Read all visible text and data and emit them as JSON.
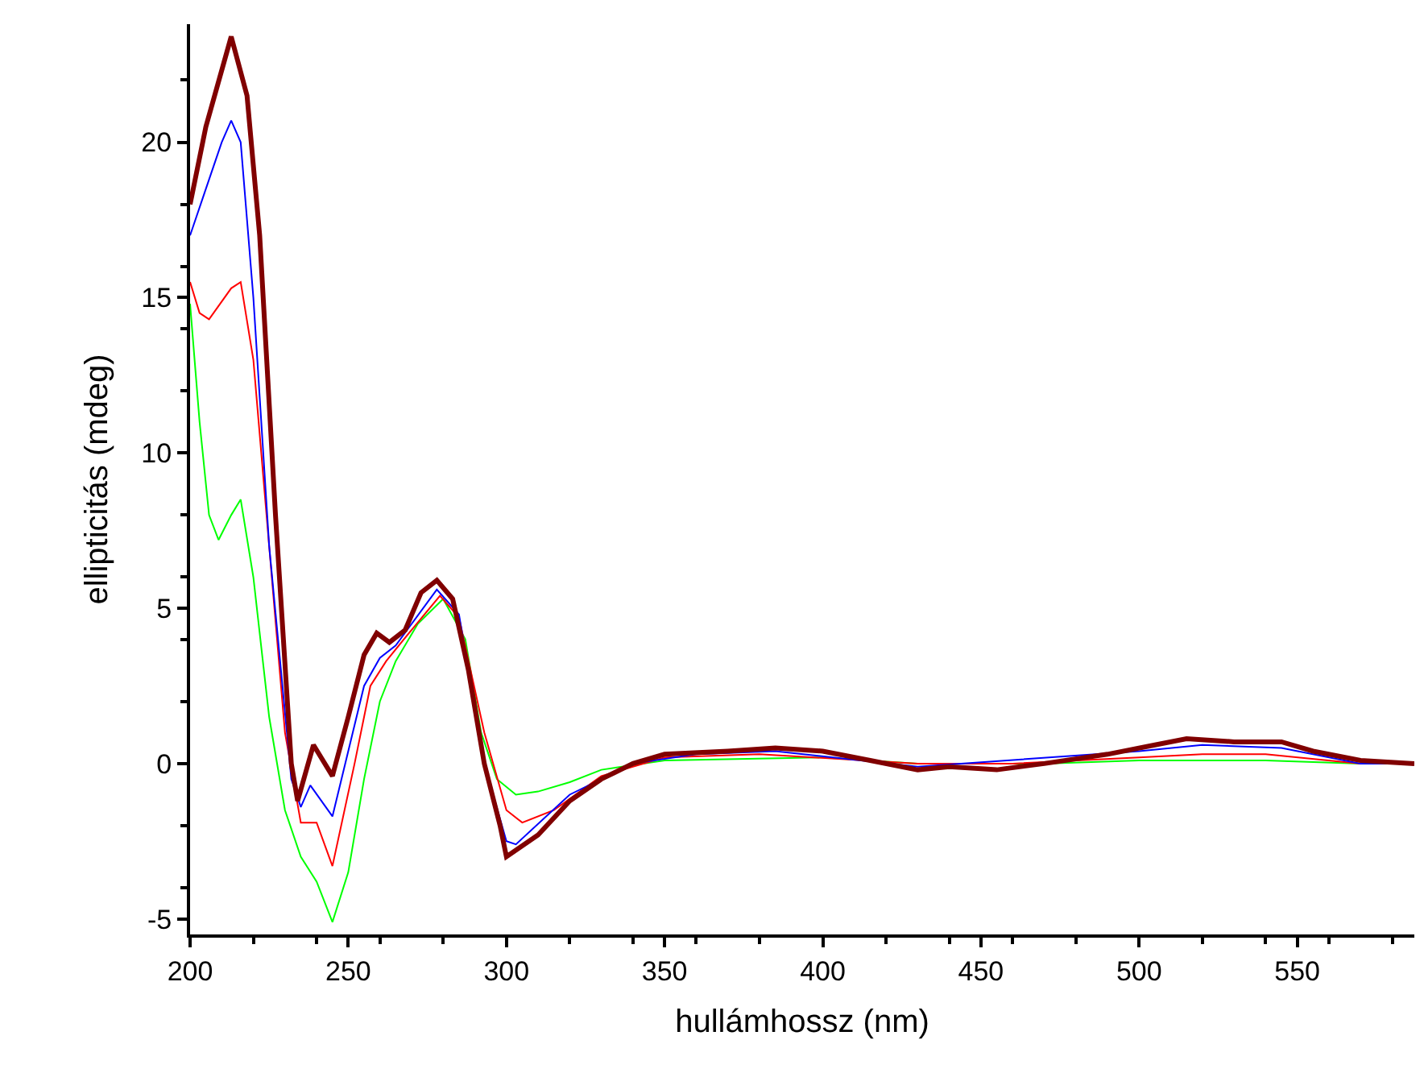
{
  "chart_data": {
    "type": "line",
    "xlabel": "hullámhossz (nm)",
    "ylabel": "ellipticitás (mdeg)",
    "xlim": [
      200,
      587
    ],
    "ylim": [
      -5.5,
      23.8
    ],
    "xticks": [
      200,
      250,
      300,
      350,
      400,
      450,
      500,
      550
    ],
    "yticks": [
      -5,
      0,
      5,
      10,
      15,
      20
    ],
    "marker": "none",
    "line_style": "solid",
    "series": [
      {
        "color": "#00ff00",
        "x": [
          200,
          203,
          206,
          209,
          213,
          216,
          220,
          225,
          230,
          235,
          240,
          245,
          250,
          255,
          260,
          265,
          272,
          280,
          287,
          292,
          297,
          303,
          310,
          320,
          330,
          350,
          400,
          430,
          470,
          500,
          540,
          570,
          587
        ],
        "values": [
          14.8,
          11,
          8,
          7.2,
          8,
          8.5,
          6,
          1.5,
          -1.5,
          -3,
          -3.8,
          -5.1,
          -3.5,
          -0.5,
          2,
          3.3,
          4.5,
          5.3,
          4,
          1,
          -0.5,
          -1,
          -0.9,
          -0.6,
          -0.2,
          0.1,
          0.2,
          0,
          0,
          0.1,
          0.1,
          0,
          0
        ]
      },
      {
        "color": "#ff0000",
        "x": [
          200,
          203,
          206,
          213,
          216,
          220,
          225,
          230,
          235,
          240,
          245,
          252,
          257,
          262,
          270,
          279,
          285,
          293,
          300,
          305,
          315,
          330,
          350,
          380,
          430,
          460,
          500,
          520,
          540,
          570,
          587
        ],
        "values": [
          15.5,
          14.5,
          14.3,
          15.3,
          15.5,
          13,
          7,
          1,
          -1.9,
          -1.9,
          -3.3,
          0,
          2.5,
          3.3,
          4.3,
          5.4,
          4.7,
          1,
          -1.5,
          -1.9,
          -1.5,
          -0.4,
          0.2,
          0.3,
          0,
          0,
          0.2,
          0.3,
          0.3,
          0,
          0
        ]
      },
      {
        "color": "#0000ff",
        "x": [
          200,
          205,
          210,
          213,
          216,
          220,
          225,
          232,
          235,
          238,
          245,
          255,
          260,
          265,
          278,
          285,
          293,
          300,
          303,
          320,
          340,
          360,
          385,
          430,
          500,
          520,
          545,
          570,
          587
        ],
        "values": [
          17,
          18.5,
          20,
          20.7,
          20,
          15,
          7,
          -0.5,
          -1.4,
          -0.7,
          -1.7,
          2.5,
          3.4,
          3.8,
          5.6,
          4.8,
          0,
          -2.5,
          -2.6,
          -1,
          0,
          0.3,
          0.4,
          -0.1,
          0.4,
          0.6,
          0.5,
          0,
          0
        ]
      },
      {
        "color": "#800000",
        "x": [
          200,
          205,
          213,
          218,
          222,
          227,
          232,
          234,
          239,
          245,
          250,
          255,
          259,
          263,
          268,
          273,
          278,
          283,
          288,
          293,
          298,
          300,
          310,
          320,
          330,
          340,
          350,
          370,
          385,
          400,
          415,
          430,
          440,
          455,
          470,
          490,
          505,
          515,
          530,
          545,
          555,
          570,
          587
        ],
        "values": [
          18,
          20.5,
          23.4,
          21.5,
          17,
          8,
          0,
          -1.2,
          0.6,
          -0.4,
          1.5,
          3.5,
          4.2,
          3.9,
          4.3,
          5.5,
          5.9,
          5.3,
          3,
          0,
          -2,
          -3,
          -2.3,
          -1.2,
          -0.5,
          0,
          0.3,
          0.4,
          0.5,
          0.4,
          0.1,
          -0.2,
          -0.1,
          -0.2,
          0,
          0.3,
          0.6,
          0.8,
          0.7,
          0.7,
          0.4,
          0.1,
          0
        ]
      }
    ]
  }
}
